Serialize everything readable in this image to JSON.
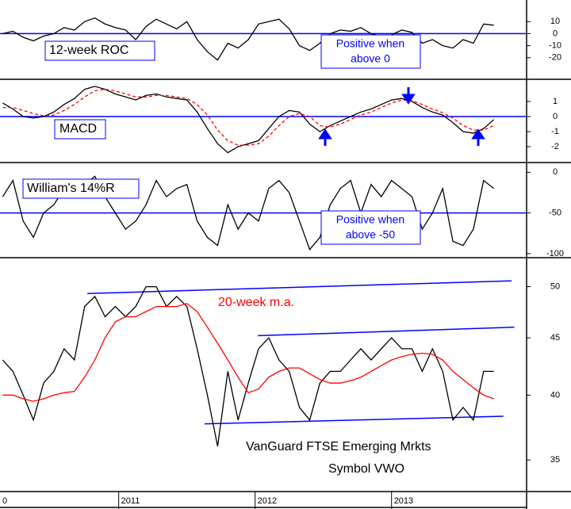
{
  "chart_data": {
    "type": "line",
    "x": [
      2010.15,
      2010.225,
      2010.3,
      2010.375,
      2010.45,
      2010.525,
      2010.6,
      2010.675,
      2010.75,
      2010.825,
      2010.9,
      2010.975,
      2011.05,
      2011.125,
      2011.2,
      2011.275,
      2011.35,
      2011.425,
      2011.5,
      2011.575,
      2011.65,
      2011.725,
      2011.8,
      2011.875,
      2011.95,
      2012.025,
      2012.1,
      2012.175,
      2012.25,
      2012.325,
      2012.4,
      2012.475,
      2012.55,
      2012.625,
      2012.7,
      2012.775,
      2012.85,
      2012.925,
      2013.0,
      2013.075,
      2013.15,
      2013.225,
      2013.3,
      2013.375,
      2013.45,
      2013.525,
      2013.6,
      2013.675,
      2013.75
    ],
    "xlim": [
      2010.13,
      2013.99
    ],
    "xticks": [
      {
        "value": 2010,
        "label": "0"
      },
      2011,
      2012,
      2013
    ],
    "panels": [
      {
        "ylim": [
          -38,
          28
        ],
        "yticks": [
          10,
          0,
          -10,
          -20
        ],
        "reference_line": 0,
        "annotations": [
          "12-week ROC",
          "Positive when",
          "above 0"
        ],
        "series": [
          {
            "color": "#000000",
            "values": [
              0,
              2,
              -3,
              -6,
              -2,
              0,
              5,
              3,
              10,
              13,
              8,
              5,
              3,
              -5,
              6,
              12,
              8,
              4,
              10,
              -5,
              -15,
              -22,
              -8,
              -12,
              -5,
              8,
              10,
              12,
              4,
              -10,
              -14,
              -8,
              0,
              3,
              2,
              5,
              0,
              -2,
              -1,
              3,
              1,
              -8,
              -5,
              -10,
              -12,
              -5,
              -8,
              8,
              7
            ]
          }
        ]
      },
      {
        "ylim": [
          -3.05,
          2.47
        ],
        "yticks": [
          1,
          0,
          -1,
          -2
        ],
        "reference_line": 0,
        "annotations": [
          "MACD"
        ],
        "series": [
          {
            "color": "#000000",
            "values": [
              0.9,
              0.5,
              0,
              -0.1,
              0,
              0.3,
              0.8,
              1.2,
              1.8,
              2.0,
              1.8,
              1.5,
              1.3,
              1.1,
              1.4,
              1.5,
              1.3,
              1.2,
              1.1,
              0.3,
              -0.8,
              -1.8,
              -2.4,
              -2,
              -1.8,
              -1.6,
              -0.8,
              0,
              0.4,
              0.3,
              -0.5,
              -1.0,
              -0.6,
              -0.3,
              0,
              0.3,
              0.5,
              0.8,
              1.1,
              1.2,
              1.0,
              0.6,
              0.3,
              0.1,
              -0.4,
              -1.0,
              -1.1,
              -0.8,
              -0.2
            ]
          },
          {
            "color": "#ff0000",
            "dashed": true,
            "values": [
              0.6,
              0.6,
              0.4,
              0.2,
              0.05,
              0.1,
              0.4,
              0.8,
              1.3,
              1.7,
              1.8,
              1.7,
              1.5,
              1.3,
              1.3,
              1.4,
              1.4,
              1.3,
              1.2,
              0.8,
              0.1,
              -0.9,
              -1.6,
              -1.9,
              -1.9,
              -1.8,
              -1.3,
              -0.6,
              0,
              0.2,
              0,
              -0.6,
              -0.7,
              -0.5,
              -0.2,
              0.1,
              0.3,
              0.6,
              0.9,
              1.1,
              1.05,
              0.8,
              0.5,
              0.25,
              -0.1,
              -0.6,
              -0.9,
              -0.9,
              -0.6
            ]
          }
        ]
      },
      {
        "ylim": [
          -105,
          12
        ],
        "yticks": [
          0,
          -50,
          -100
        ],
        "reference_line": -50,
        "annotations": [
          "William's 14%R",
          "Positive when",
          "above -50"
        ],
        "series": [
          {
            "color": "#000000",
            "values": [
              -30,
              -10,
              -60,
              -80,
              -50,
              -40,
              -20,
              -10,
              -15,
              -5,
              -30,
              -50,
              -70,
              -60,
              -40,
              -10,
              -30,
              -20,
              -15,
              -60,
              -80,
              -90,
              -40,
              -70,
              -50,
              -60,
              -20,
              -10,
              -25,
              -60,
              -95,
              -80,
              -40,
              -20,
              -10,
              -50,
              -15,
              -30,
              -10,
              -20,
              -30,
              -70,
              -50,
              -20,
              -85,
              -90,
              -70,
              -10,
              -20
            ]
          }
        ]
      },
      {
        "ylim": [
          32.8,
          52.9
        ],
        "log": true,
        "yticks": [
          50,
          45,
          40,
          35
        ],
        "annotations": [
          "20-week m.a.",
          "VanGuard FTSE Emerging Mrkts",
          "Symbol VWO"
        ],
        "trendlines": [
          {
            "color": "#0000ff",
            "x": [
              2010.77,
              2013.88
            ],
            "values": [
              49.3,
              50.6
            ]
          },
          {
            "color": "#0000ff",
            "x": [
              2012.02,
              2013.9
            ],
            "values": [
              45.2,
              46.0
            ]
          },
          {
            "color": "#0000ff",
            "x": [
              2011.63,
              2013.82
            ],
            "values": [
              37.7,
              38.3
            ]
          }
        ],
        "series": [
          {
            "color": "#000000",
            "values": [
              43,
              42,
              40,
              38,
              41,
              42,
              44,
              43,
              48,
              49,
              47,
              48,
              47,
              48,
              50,
              50,
              48,
              49,
              48,
              44,
              40,
              36,
              42,
              38,
              41,
              44,
              45,
              43,
              42,
              39,
              38,
              41,
              42,
              42,
              43,
              44,
              43,
              44,
              45,
              44,
              44,
              42,
              44,
              42,
              38,
              39,
              38,
              42,
              42
            ]
          },
          {
            "color": "#ff0000",
            "values": [
              40,
              40,
              39.7,
              39.5,
              39.7,
              40,
              40.2,
              40.3,
              41.5,
              43,
              45,
              46.5,
              47,
              47,
              47.5,
              48,
              48,
              48,
              48.3,
              47.5,
              46,
              44.5,
              43,
              41.5,
              40.2,
              40.5,
              41.5,
              42,
              42.3,
              42.3,
              41.8,
              41.3,
              41,
              41,
              41.2,
              41.5,
              42,
              42.5,
              43,
              43.3,
              43.5,
              43.6,
              43.5,
              43,
              42,
              41.3,
              40.6,
              40,
              39.7
            ]
          }
        ]
      }
    ]
  }
}
